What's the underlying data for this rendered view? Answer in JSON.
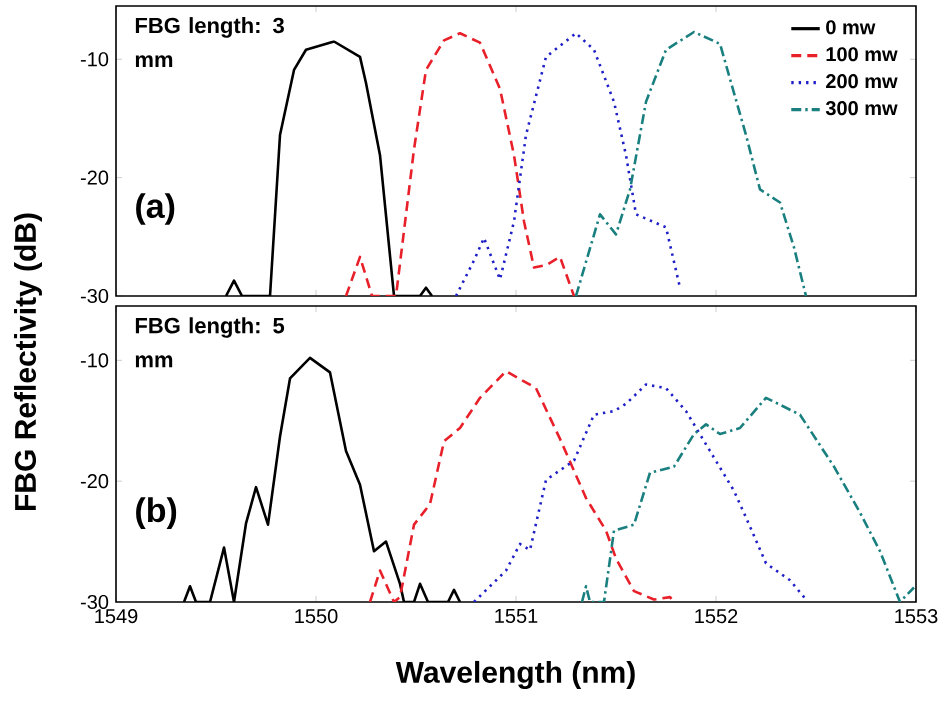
{
  "chart_data": [
    {
      "type": "line",
      "ylabel": "FBG Reflectivity (dB)",
      "annotations": [
        "FBG length: 3 mm",
        "(a)"
      ],
      "xlim": [
        1549,
        1553
      ],
      "ylim": [
        -30,
        -5.5
      ],
      "xticks": [
        1549,
        1550,
        1551,
        1552,
        1553
      ],
      "yticks": [
        -30,
        -20,
        -10
      ],
      "tick_labels": "y",
      "legend": "top right",
      "series": [
        {
          "name": "0 mw",
          "color": "#000000",
          "line_style": "solid",
          "x": [
            1549.55,
            1549.59,
            1549.63,
            1549.77,
            1549.82,
            1549.89,
            1549.95,
            1550.09,
            1550.22,
            1550.25,
            1550.32,
            1550.39,
            1550.52,
            1550.55,
            1550.58
          ],
          "values": [
            -30,
            -28.7,
            -30,
            -30,
            -16.4,
            -10.9,
            -9.2,
            -8.5,
            -9.8,
            -12,
            -18.1,
            -30,
            -30,
            -29.3,
            -30
          ]
        },
        {
          "name": "100 mw",
          "color": "#e8202a",
          "line_style": "dashed",
          "x": [
            1550.15,
            1550.22,
            1550.28,
            1550.4,
            1550.49,
            1550.55,
            1550.64,
            1550.72,
            1550.82,
            1550.92,
            1550.99,
            1551.04,
            1551.09,
            1551.15,
            1551.22,
            1551.29
          ],
          "values": [
            -30,
            -26.7,
            -30,
            -30,
            -17.6,
            -10.9,
            -8.4,
            -7.8,
            -8.6,
            -12.5,
            -18.1,
            -23.7,
            -27.6,
            -27.4,
            -26.7,
            -30
          ]
        },
        {
          "name": "200 mw",
          "color": "#1f1fc8",
          "line_style": "dotted",
          "x": [
            1550.7,
            1550.79,
            1550.84,
            1550.92,
            1550.99,
            1551.05,
            1551.15,
            1551.3,
            1551.39,
            1551.49,
            1551.55,
            1551.6,
            1551.75,
            1551.82
          ],
          "values": [
            -30,
            -27,
            -25.1,
            -28.6,
            -23.7,
            -16.4,
            -9.8,
            -7.8,
            -9.2,
            -13.6,
            -18.1,
            -23.1,
            -24.2,
            -29.3
          ]
        },
        {
          "name": "300 mw",
          "color": "#1a7f7f",
          "line_style": "dashdotted",
          "x": [
            1551.3,
            1551.42,
            1551.5,
            1551.57,
            1551.65,
            1551.75,
            1551.89,
            1552.02,
            1552.15,
            1552.22,
            1552.32,
            1552.39,
            1552.45
          ],
          "values": [
            -30,
            -23.1,
            -24.8,
            -21,
            -13.6,
            -9.2,
            -7.7,
            -8.7,
            -16.4,
            -21,
            -22.1,
            -25.9,
            -30
          ]
        }
      ]
    },
    {
      "type": "line",
      "xlabel": "Wavelength (nm)",
      "annotations": [
        "FBG length: 5 mm",
        "(b)"
      ],
      "xlim": [
        1549,
        1553
      ],
      "ylim": [
        -30,
        -5.5
      ],
      "xticks": [
        1549,
        1550,
        1551,
        1552,
        1553
      ],
      "yticks": [
        -30,
        -20,
        -10
      ],
      "series": [
        {
          "color": "#000000",
          "line_style": "solid",
          "x": [
            1549.34,
            1549.37,
            1549.4,
            1549.47,
            1549.54,
            1549.59,
            1549.65,
            1549.7,
            1549.76,
            1549.82,
            1549.87,
            1549.97,
            1550.07,
            1550.15,
            1550.22,
            1550.29,
            1550.35,
            1550.42,
            1550.44,
            1550.49,
            1550.52,
            1550.56,
            1550.66,
            1550.69,
            1550.72
          ],
          "values": [
            -30,
            -28.7,
            -30,
            -30,
            -25.5,
            -30,
            -23.5,
            -20.5,
            -23.6,
            -16.3,
            -11.5,
            -9.8,
            -11,
            -17.5,
            -20.3,
            -25.8,
            -25,
            -28.5,
            -30,
            -30,
            -28.5,
            -30,
            -30,
            -29,
            -30
          ]
        },
        {
          "color": "#e8202a",
          "line_style": "dashed",
          "x": [
            1550.27,
            1550.32,
            1550.39,
            1550.42,
            1550.49,
            1550.57,
            1550.64,
            1550.72,
            1550.82,
            1550.95,
            1551.1,
            1551.22,
            1551.35,
            1551.45,
            1551.5,
            1551.59,
            1551.69,
            1551.77,
            1551.79
          ],
          "values": [
            -30,
            -27.4,
            -30,
            -29.6,
            -23.6,
            -21.9,
            -16.7,
            -15.6,
            -13.1,
            -10.9,
            -12.3,
            -16.5,
            -21.4,
            -24.1,
            -26.4,
            -29.1,
            -29.8,
            -29.6,
            -30
          ]
        },
        {
          "color": "#1f1fc8",
          "line_style": "dotted",
          "x": [
            1550.79,
            1550.95,
            1551.02,
            1551.07,
            1551.15,
            1551.29,
            1551.39,
            1551.49,
            1551.55,
            1551.65,
            1551.75,
            1551.85,
            1551.97,
            1552.09,
            1552.15,
            1552.25,
            1552.37,
            1552.45
          ],
          "values": [
            -30,
            -27.4,
            -25.2,
            -25.7,
            -19.9,
            -18.3,
            -14.5,
            -14.2,
            -13.6,
            -12,
            -12.3,
            -14.2,
            -17.5,
            -20.8,
            -23,
            -26.8,
            -28.2,
            -29.8
          ]
        },
        {
          "color": "#1a7f7f",
          "line_style": "dashdotted",
          "x": [
            1551.33,
            1551.35,
            1551.37,
            1551.44,
            1551.49,
            1551.59,
            1551.67,
            1551.72,
            1551.79,
            1551.89,
            1551.95,
            1552.02,
            1552.12,
            1552.25,
            1552.42,
            1552.59,
            1552.72,
            1552.82,
            1552.92,
            1552.99
          ],
          "values": [
            -30,
            -28.7,
            -30,
            -30,
            -24.1,
            -23.6,
            -19.3,
            -19.1,
            -18.8,
            -16.1,
            -15.3,
            -16.1,
            -15.6,
            -13.1,
            -14.5,
            -18.8,
            -22.6,
            -25.8,
            -30,
            -28.8
          ]
        }
      ]
    }
  ]
}
